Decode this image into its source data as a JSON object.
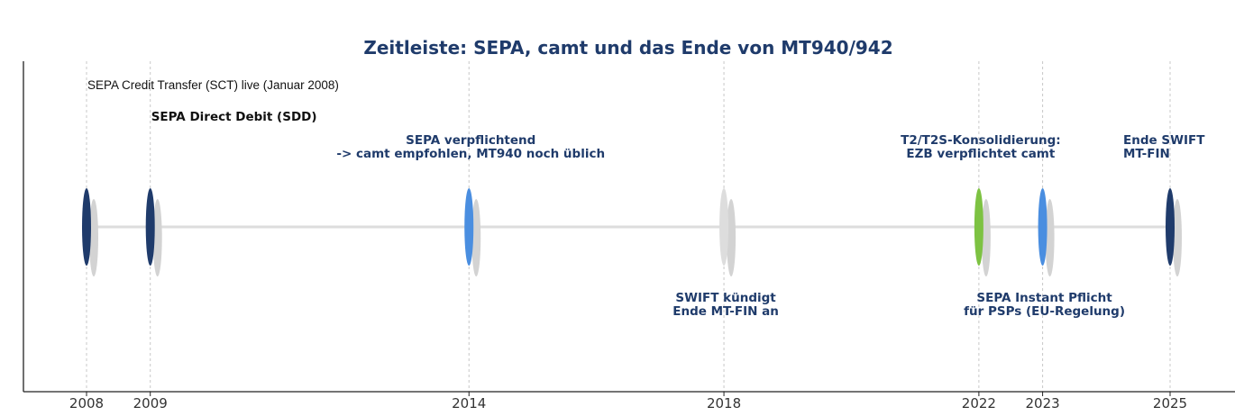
{
  "chart_data": {
    "type": "timeline",
    "title": "Zeitleiste: SEPA, camt und das Ende von MT940/942",
    "xlim": [
      2007,
      2026
    ],
    "x_ticks": [
      "2008",
      "2009",
      "2014",
      "2018",
      "2022",
      "2023",
      "2025"
    ],
    "grid": "vertical dashed at event years",
    "events": [
      {
        "year": 2008,
        "lines": [
          "SEPA Credit Transfer (SCT) live (Januar 2008)"
        ],
        "color": "#1f3b6b",
        "placement": "above",
        "level": 3,
        "style": "plain",
        "align": "start"
      },
      {
        "year": 2009,
        "lines": [
          "SEPA Direct Debit (SDD)"
        ],
        "color": "#1f3b6b",
        "placement": "above",
        "level": 2,
        "style": "bold-black",
        "align": "start"
      },
      {
        "year": 2014,
        "lines": [
          "SEPA verpflichtend",
          "-> camt empfohlen, MT940 noch üblich"
        ],
        "color": "#4a8ee0",
        "placement": "above",
        "level": 1,
        "style": "bold",
        "align": "middle"
      },
      {
        "year": 2018,
        "lines": [
          "SWIFT kündigt",
          "Ende MT-FIN an"
        ],
        "color": "#dddddd",
        "placement": "below",
        "level": 1,
        "style": "bold",
        "align": "middle"
      },
      {
        "year": 2022,
        "lines": [
          "T2/T2S-Konsolidierung:",
          "EZB verpflichtet camt"
        ],
        "color": "#7dc242",
        "placement": "above",
        "level": 1,
        "style": "bold",
        "align": "middle"
      },
      {
        "year": 2023,
        "lines": [
          "SEPA Instant Pflicht",
          "für PSPs (EU-Regelung)"
        ],
        "color": "#4a8ee0",
        "placement": "below",
        "level": 1,
        "style": "bold",
        "align": "middle"
      },
      {
        "year": 2025,
        "lines": [
          "Ende SWIFT",
          "MT-FIN"
        ],
        "color": "#1f3b6b",
        "placement": "above",
        "level": 1,
        "style": "bold",
        "align": "start"
      }
    ]
  }
}
